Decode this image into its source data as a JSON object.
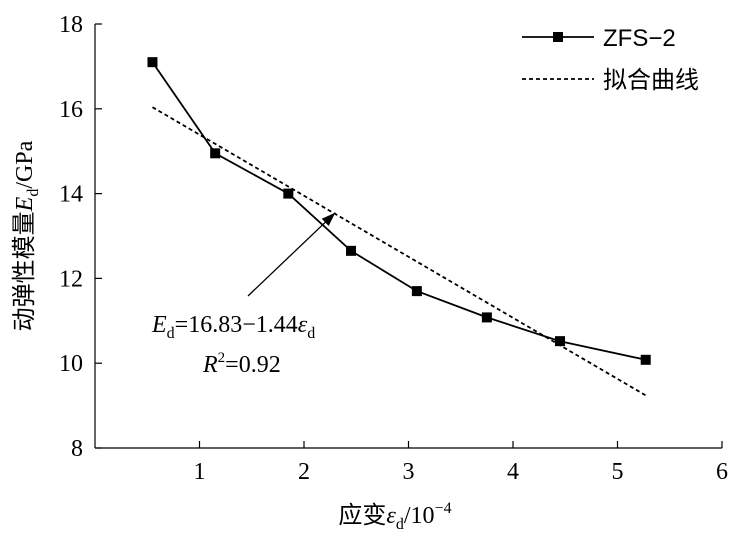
{
  "chart_data": {
    "type": "line",
    "x": [
      0.55,
      1.15,
      1.85,
      2.45,
      3.08,
      3.75,
      4.45,
      5.27
    ],
    "series": [
      {
        "name": "ZFS−2",
        "values": [
          17.1,
          14.95,
          14.0,
          12.65,
          11.7,
          11.08,
          10.52,
          10.08
        ],
        "marker": "square",
        "style": "solid",
        "color": "#000000"
      },
      {
        "name": "拟合曲线",
        "fit": {
          "intercept": 16.83,
          "slope": -1.44
        },
        "x_range": [
          0.55,
          5.27
        ],
        "style": "dashed",
        "color": "#000000"
      }
    ],
    "xlim": [
      0,
      6
    ],
    "ylim": [
      8,
      18
    ],
    "x_ticks": [
      "1",
      "2",
      "3",
      "4",
      "5",
      "6"
    ],
    "y_ticks": [
      "8",
      "10",
      "12",
      "14",
      "16",
      "18"
    ],
    "xlabel": {
      "prefix": "应变",
      "symbol": "ε",
      "sub": "d",
      "suffix": "/10",
      "sup": "−4"
    },
    "ylabel": {
      "prefix": "动弹性模量",
      "symbol": "E",
      "sub": "d",
      "suffix": "/GPa"
    },
    "grid": false,
    "legend_position": "top-right",
    "annotation": {
      "equation": {
        "E": "E",
        "d": "d",
        "rhs": "=16.83−1.44",
        "eps": "ε",
        "d2": "d"
      },
      "r2": {
        "R": "R",
        "sup": "2",
        "rhs": "=0.92"
      },
      "arrow_to": {
        "x": 2.3,
        "y": 13.55
      }
    }
  }
}
